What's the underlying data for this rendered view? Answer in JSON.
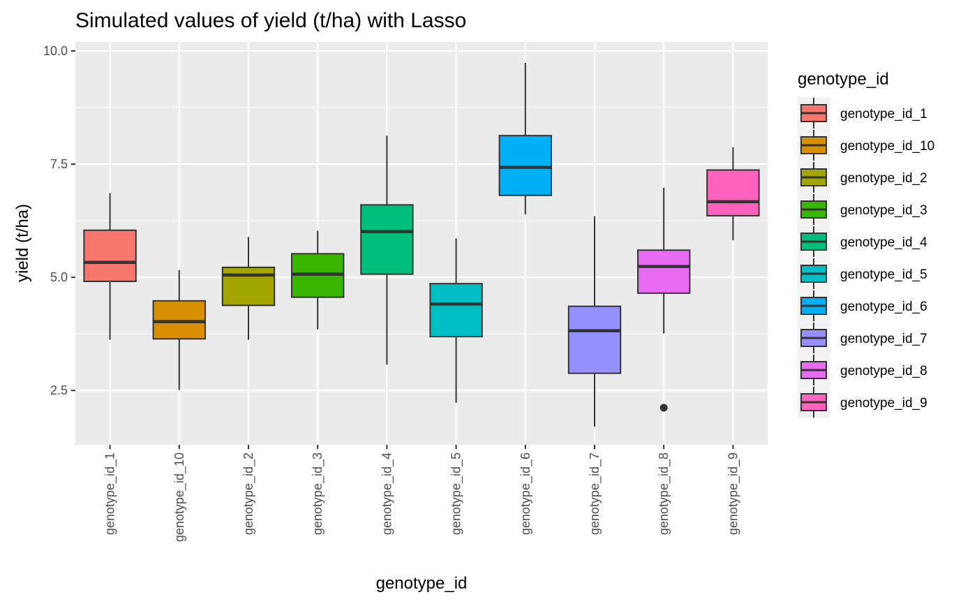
{
  "chart_data": {
    "type": "box",
    "title": "Simulated values of yield (t/ha) with Lasso",
    "xlabel": "genotype_id",
    "ylabel": "yield (t/ha)",
    "ylim": [
      1.3,
      10.2
    ],
    "yticks": [
      2.5,
      5.0,
      7.5,
      10.0
    ],
    "ytick_labels": [
      "2.5",
      "5.0",
      "7.5",
      "10.0"
    ],
    "grid": true,
    "legend": {
      "title": "genotype_id",
      "position": "right"
    },
    "categories": [
      "genotype_id_1",
      "genotype_id_10",
      "genotype_id_2",
      "genotype_id_3",
      "genotype_id_4",
      "genotype_id_5",
      "genotype_id_6",
      "genotype_id_7",
      "genotype_id_8",
      "genotype_id_9"
    ],
    "boxes": [
      {
        "name": "genotype_id_1",
        "color": "#F8766D",
        "whisker_low": 3.62,
        "q1": 4.91,
        "median": 5.33,
        "q3": 6.04,
        "whisker_high": 6.86,
        "outliers": []
      },
      {
        "name": "genotype_id_10",
        "color": "#D89000",
        "whisker_low": 2.51,
        "q1": 3.64,
        "median": 4.02,
        "q3": 4.48,
        "whisker_high": 5.16,
        "outliers": []
      },
      {
        "name": "genotype_id_2",
        "color": "#A3A500",
        "whisker_low": 3.62,
        "q1": 4.38,
        "median": 5.05,
        "q3": 5.22,
        "whisker_high": 5.89,
        "outliers": []
      },
      {
        "name": "genotype_id_3",
        "color": "#39B600",
        "whisker_low": 3.85,
        "q1": 4.56,
        "median": 5.07,
        "q3": 5.52,
        "whisker_high": 6.03,
        "outliers": []
      },
      {
        "name": "genotype_id_4",
        "color": "#00BF7D",
        "whisker_low": 3.07,
        "q1": 5.07,
        "median": 6.01,
        "q3": 6.6,
        "whisker_high": 8.13,
        "outliers": []
      },
      {
        "name": "genotype_id_5",
        "color": "#00BFC4",
        "whisker_low": 2.23,
        "q1": 3.69,
        "median": 4.41,
        "q3": 4.86,
        "whisker_high": 5.86,
        "outliers": []
      },
      {
        "name": "genotype_id_6",
        "color": "#00B0F6",
        "whisker_low": 6.39,
        "q1": 6.81,
        "median": 7.43,
        "q3": 8.13,
        "whisker_high": 9.74,
        "outliers": []
      },
      {
        "name": "genotype_id_7",
        "color": "#9590FF",
        "whisker_low": 1.7,
        "q1": 2.88,
        "median": 3.82,
        "q3": 4.36,
        "whisker_high": 6.35,
        "outliers": []
      },
      {
        "name": "genotype_id_8",
        "color": "#E76BF3",
        "whisker_low": 3.76,
        "q1": 4.65,
        "median": 5.24,
        "q3": 5.6,
        "whisker_high": 6.98,
        "outliers": [
          2.12
        ]
      },
      {
        "name": "genotype_id_9",
        "color": "#FF62BC",
        "whisker_low": 5.82,
        "q1": 6.36,
        "median": 6.67,
        "q3": 7.37,
        "whisker_high": 7.87,
        "outliers": []
      }
    ]
  }
}
